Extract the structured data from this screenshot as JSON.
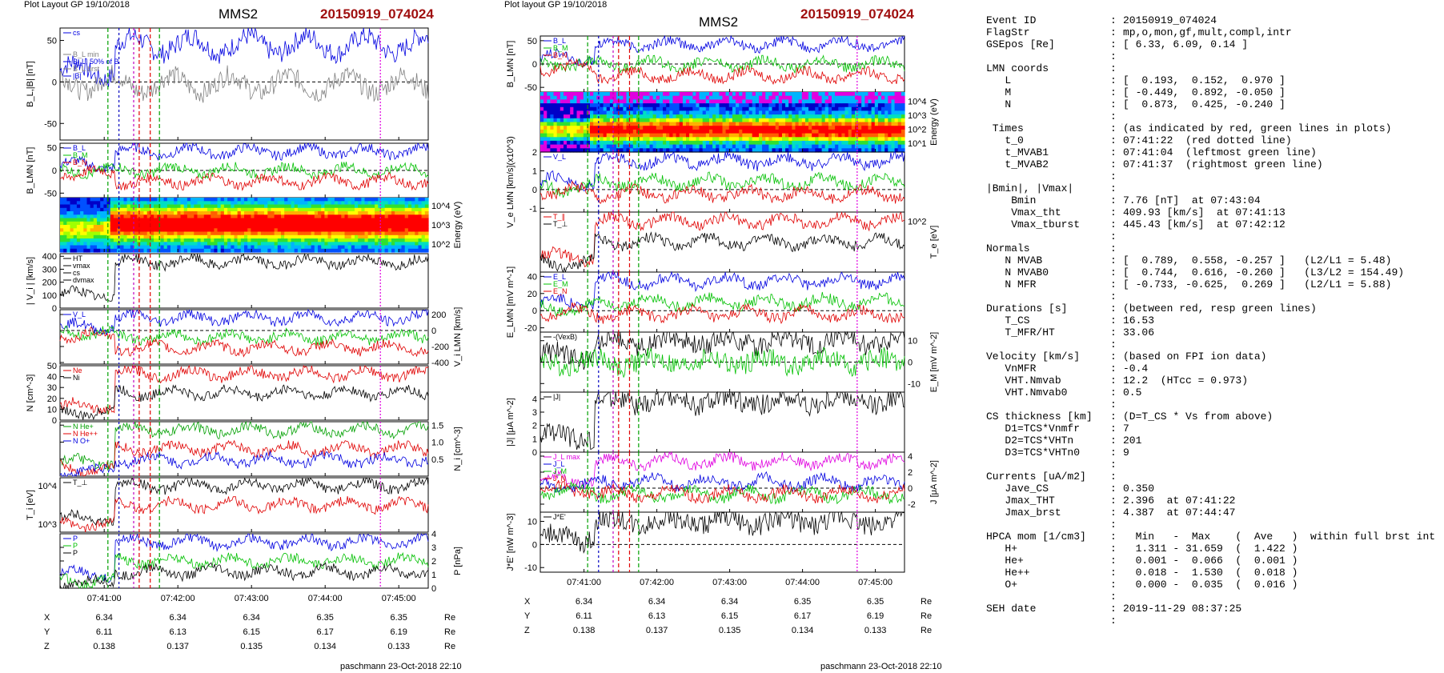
{
  "figure_left": {
    "layout_label": "Plot Layout GP 19/10/2018",
    "spacecraft": "MMS2",
    "event": "20150919_074024",
    "footer": "paschmann 23-Oct-2018 22:10"
  },
  "figure_right": {
    "layout_label": "Plot layout GP 19/10/2018",
    "spacecraft": "MMS2",
    "event": "20150919_074024",
    "footer": "paschmann 23-Oct-2018 22:10"
  },
  "chart_data": [
    {
      "type": "line",
      "figure": "left",
      "time_ticks": [
        "07:41:00",
        "07:42:00",
        "07:43:00",
        "07:44:00",
        "07:45:00"
      ],
      "ephemeris": {
        "unit": "Re",
        "rows": [
          {
            "label": "X",
            "values": [
              "6.34",
              "6.34",
              "6.34",
              "6.35",
              "6.35"
            ]
          },
          {
            "label": "Y",
            "values": [
              "6.11",
              "6.13",
              "6.15",
              "6.17",
              "6.19"
            ]
          },
          {
            "label": "Z",
            "values": [
              "0.138",
              "0.137",
              "0.135",
              "0.134",
              "0.133"
            ]
          }
        ]
      },
      "panels": [
        {
          "key": "BL",
          "ylabel": "B_L,|B| [nT]",
          "ylim": [
            -70,
            65
          ],
          "yticks": [
            "50",
            "0",
            "-50"
          ],
          "legend": [
            "cs",
            "",
            "",
            "B_L min",
            "B_L, 50% of B",
            "B_L brst",
            "|B|"
          ]
        },
        {
          "key": "BLMN",
          "ylabel": "B_LMN [nT]",
          "ylim": [
            -60,
            60
          ],
          "yticks": [
            "50",
            "0",
            "-50"
          ],
          "legend": [
            "B_L",
            "B_M",
            "B_N"
          ]
        },
        {
          "key": "ion_spec",
          "ylabel": "Energy (eV)",
          "yticks": [
            "10^4",
            "10^3",
            "10^2"
          ]
        },
        {
          "key": "Vi",
          "ylabel": "| V_i | [km/s]",
          "ylim": [
            0,
            420
          ],
          "yticks": [
            "400",
            "300",
            "200",
            "100",
            "0"
          ],
          "legend": [
            "HT",
            "vmax",
            "cs",
            "dvmax"
          ]
        },
        {
          "key": "ViLMN",
          "ylabel": "V_i LMN [km/s]",
          "ylim": [
            -420,
            260
          ],
          "yticks": [
            "200",
            "0",
            "-200",
            "-400"
          ],
          "legend": [
            "V_L"
          ]
        },
        {
          "key": "N",
          "ylabel": "N [cm^-3]",
          "ylim": [
            0,
            50
          ],
          "yticks": [
            "50",
            "40",
            "30",
            "20",
            "10",
            "0"
          ],
          "legend": [
            "Ne",
            "Ni"
          ]
        },
        {
          "key": "Ni",
          "ylabel": "N_i [cm^-3]",
          "ylim": [
            0,
            1.6
          ],
          "yticks": [
            "1.5",
            "1.0",
            "0.5"
          ],
          "legend": [
            "N He+",
            "N He++",
            "N O+"
          ]
        },
        {
          "key": "Ti",
          "ylabel": "T_i [eV]",
          "yticks": [
            "10^4",
            "10^3"
          ],
          "legend": [
            "T_⊥"
          ]
        },
        {
          "key": "P",
          "ylabel": "P [nPa]",
          "ylim": [
            0,
            4
          ],
          "yticks": [
            "4",
            "3",
            "2",
            "1",
            "0"
          ],
          "legend": [
            "P",
            "P",
            "P"
          ]
        }
      ]
    },
    {
      "type": "line",
      "figure": "right",
      "time_ticks": [
        "07:41:00",
        "07:42:00",
        "07:43:00",
        "07:44:00",
        "07:45:00"
      ],
      "ephemeris": {
        "unit": "Re",
        "rows": [
          {
            "label": "X",
            "values": [
              "6.34",
              "6.34",
              "6.34",
              "6.35",
              "6.35"
            ]
          },
          {
            "label": "Y",
            "values": [
              "6.11",
              "6.13",
              "6.15",
              "6.17",
              "6.19"
            ]
          },
          {
            "label": "Z",
            "values": [
              "0.138",
              "0.137",
              "0.135",
              "0.134",
              "0.133"
            ]
          }
        ]
      },
      "panels": [
        {
          "key": "BLMN",
          "ylabel": "B_LMN [nT]",
          "ylim": [
            -60,
            60
          ],
          "yticks": [
            "50",
            "0",
            "-50"
          ],
          "legend": [
            "B_L",
            "B_M",
            "B_N"
          ]
        },
        {
          "key": "e_spec",
          "ylabel": "Energy (eV)",
          "yticks": [
            "10^4",
            "10^3",
            "10^2",
            "10^1"
          ]
        },
        {
          "key": "VeLMN",
          "ylabel": "V_e LMN [km/s](x10^3)",
          "ylim": [
            -1.2,
            2
          ],
          "yticks": [
            "2",
            "1",
            "0",
            "-1"
          ],
          "legend": [
            "V_L"
          ]
        },
        {
          "key": "Te",
          "ylabel": "T_e [eV]",
          "yticks": [
            "10^2"
          ],
          "legend": [
            "T_∥",
            "T_⊥"
          ]
        },
        {
          "key": "ELMN",
          "ylabel": "E_LMN [mV m^-1]",
          "ylim": [
            -25,
            45
          ],
          "yticks": [
            "40",
            "20",
            "0",
            "-20"
          ],
          "legend": [
            "E_L",
            "E_M",
            "E_N"
          ]
        },
        {
          "key": "EM",
          "ylabel": "E_M [mV m^-2]",
          "ylim": [
            -14,
            14
          ],
          "yticks": [
            "10",
            "0",
            "-10"
          ],
          "legend": [
            "-(VexB)"
          ]
        },
        {
          "key": "J",
          "ylabel": "|J| [μA m^-2]",
          "ylim": [
            0,
            4.5
          ],
          "yticks": [
            "4",
            "3",
            "2",
            "1",
            "0"
          ],
          "legend": [
            "|J|"
          ]
        },
        {
          "key": "JLMN",
          "ylabel": "J [μA m^-2]",
          "ylim": [
            -3,
            4.5
          ],
          "yticks": [
            "4",
            "2",
            "0",
            "-2"
          ],
          "legend": [
            "J_L max",
            "J_L",
            "J_M",
            "J_N"
          ]
        },
        {
          "key": "JE",
          "ylabel": "J*E' [nW m^-3]",
          "ylim": [
            -12,
            14
          ],
          "yticks": [
            "10",
            "0",
            "-10"
          ],
          "legend": [
            "J*E'"
          ]
        }
      ]
    }
  ],
  "summary": [
    {
      "k": "Event ID",
      "v": "20150919_074024"
    },
    {
      "k": "FlagStr",
      "v": "mp,o,mon,gf,mult,compl,intr"
    },
    {
      "k": "GSEpos [Re]",
      "v": "[ 6.33, 6.09, 0.14 ]"
    },
    {
      "k": "",
      "v": ""
    },
    {
      "k": "LMN coords",
      "v": ""
    },
    {
      "k": "   L",
      "v": "[  0.193,  0.152,  0.970 ]"
    },
    {
      "k": "   M",
      "v": "[ -0.449,  0.892, -0.050 ]"
    },
    {
      "k": "   N",
      "v": "[  0.873,  0.425, -0.240 ]"
    },
    {
      "k": "",
      "v": ""
    },
    {
      "k": " Times",
      "v": "(as indicated by red, green lines in plots)"
    },
    {
      "k": "   t_0",
      "v": "07:41:22  (red dotted line)"
    },
    {
      "k": "   t_MVAB1",
      "v": "07:41:04  (leftmost green line)"
    },
    {
      "k": "   t_MVAB2",
      "v": "07:41:37  (rightmost green line)"
    },
    {
      "k": "",
      "v": ""
    },
    {
      "k": "|Bmin|, |Vmax|",
      "v": ""
    },
    {
      "k": "    Bmin",
      "v": "7.76 [nT]  at 07:43:04"
    },
    {
      "k": "    Vmax_tht",
      "v": "409.93 [km/s]  at 07:41:13"
    },
    {
      "k": "    Vmax_tburst",
      "v": "445.43 [km/s]  at 07:42:12"
    },
    {
      "k": "",
      "v": ""
    },
    {
      "k": "Normals",
      "v": ""
    },
    {
      "k": "   N MVAB",
      "v": "[  0.789,  0.558, -0.257 ]   (L2/L1 = 5.48)"
    },
    {
      "k": "   N MVAB0",
      "v": "[  0.744,  0.616, -0.260 ]   (L3/L2 = 154.49)"
    },
    {
      "k": "   N MFR",
      "v": "[ -0.733, -0.625,  0.269 ]   (L2/L1 = 5.88)"
    },
    {
      "k": "",
      "v": ""
    },
    {
      "k": "Durations [s]",
      "v": "(between red, resp green lines)"
    },
    {
      "k": "   T_CS",
      "v": "16.53"
    },
    {
      "k": "   T_MFR/HT",
      "v": "33.06"
    },
    {
      "k": "",
      "v": ""
    },
    {
      "k": "Velocity [km/s]",
      "v": "(based on FPI ion data)"
    },
    {
      "k": "   VnMFR",
      "v": "-0.4"
    },
    {
      "k": "   VHT.Nmvab",
      "v": "12.2  (HTcc = 0.973)"
    },
    {
      "k": "   VHT.Nmvab0",
      "v": "0.5"
    },
    {
      "k": "",
      "v": ""
    },
    {
      "k": "CS thickness [km]",
      "v": "(D=T_CS * Vs from above)"
    },
    {
      "k": "   D1=TCS*Vnmfr",
      "v": "7"
    },
    {
      "k": "   D2=TCS*VHTn",
      "v": "201"
    },
    {
      "k": "   D3=TCS*VHTn0",
      "v": "9"
    },
    {
      "k": "",
      "v": ""
    },
    {
      "k": "Currents [uA/m2]",
      "v": ""
    },
    {
      "k": "   Jave_CS",
      "v": "0.350"
    },
    {
      "k": "   Jmax_THT",
      "v": "2.396  at 07:41:22"
    },
    {
      "k": "   Jmax_brst",
      "v": "4.387  at 07:44:47"
    },
    {
      "k": "",
      "v": ""
    },
    {
      "k": "HPCA mom [1/cm3]",
      "v": "  Min   -  Max    (  Ave   )  within full brst int"
    },
    {
      "k": "   H+",
      "v": "  1.311 - 31.659  (  1.422 )"
    },
    {
      "k": "   He+",
      "v": "  0.001 -  0.066  (  0.001 )"
    },
    {
      "k": "   He++",
      "v": "  0.018 -  1.530  (  0.018 )"
    },
    {
      "k": "   O+",
      "v": "  0.000 -  0.035  (  0.016 )"
    },
    {
      "k": "",
      "v": ""
    },
    {
      "k": "SEH date",
      "v": "2019-11-29 08:37:25"
    },
    {
      "k": "",
      "v": ""
    }
  ]
}
